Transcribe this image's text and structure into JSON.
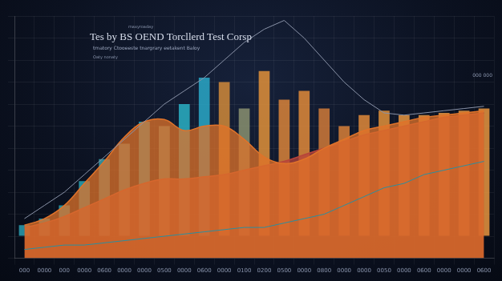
{
  "chart_data": {
    "type": "bar",
    "title": "Tes by BS OEND Torcllerd Test Corsp",
    "subtitle": "tmatory Ctooeeste tnargrary eetakent Baloy",
    "annotations": [
      "maxyroaday",
      "Oaty nonaty",
      "000 000"
    ],
    "categories": [
      "000",
      "0000",
      "000",
      "0000",
      "0600",
      "0000",
      "0000",
      "0500",
      "0000",
      "0600",
      "0000",
      "0100",
      "0200",
      "0500",
      "0000",
      "0800",
      "0000",
      "0000",
      "0050",
      "0000",
      "0600",
      "0000",
      "0000",
      "0600"
    ],
    "series": [
      {
        "type": "bar",
        "colors": [
          "#2a9fb0",
          "#2a9fb0",
          "#2aa3b3",
          "#2aa3b3",
          "#3a9fa8",
          "#4c9aa0",
          "#2ab0c4",
          "#5f9a90",
          "#2ab0c4",
          "#2aa8c8",
          "#d08a3a",
          "#8a9070",
          "#e0903a",
          "#d9843a",
          "#e08a3a",
          "#d07a38",
          "#d88038",
          "#e08a3a",
          "#e0903a",
          "#e8953f",
          "#e8953f",
          "#e8953f",
          "#e8953f",
          "#e8953f"
        ],
        "values": [
          5,
          8,
          14,
          25,
          35,
          42,
          52,
          50,
          60,
          72,
          70,
          58,
          75,
          62,
          66,
          58,
          50,
          55,
          57,
          55,
          55,
          56,
          57,
          58
        ]
      },
      {
        "type": "area",
        "color": "#e0732a",
        "values": [
          5,
          8,
          14,
          24,
          34,
          45,
          52,
          53,
          48,
          50,
          50,
          44,
          36,
          33,
          35,
          40,
          44,
          48,
          50,
          52,
          54,
          55,
          56,
          57
        ]
      },
      {
        "type": "area",
        "color": "#b8433a",
        "values": [
          4,
          6,
          9,
          13,
          17,
          21,
          24,
          26,
          26,
          27,
          28,
          30,
          32,
          34,
          37,
          40,
          43,
          46,
          48,
          50,
          52,
          54,
          55,
          56
        ]
      },
      {
        "type": "line",
        "color": "#8a93a8",
        "values": [
          8,
          14,
          20,
          28,
          36,
          44,
          52,
          60,
          66,
          72,
          80,
          88,
          94,
          98,
          90,
          80,
          70,
          62,
          56,
          55,
          56,
          57,
          58,
          59
        ]
      },
      {
        "type": "line",
        "color": "#2a8fa0",
        "values": [
          -6,
          -5,
          -4,
          -4,
          -3,
          -2,
          -1,
          0,
          1,
          2,
          3,
          4,
          4,
          6,
          8,
          10,
          14,
          18,
          22,
          24,
          28,
          30,
          32,
          34
        ]
      }
    ],
    "ylim": [
      -10,
      100
    ],
    "yticks": [
      -10,
      0,
      10,
      20,
      30,
      40,
      50,
      60,
      70,
      80,
      90,
      100
    ],
    "grid": true,
    "tick_labels": "x"
  }
}
